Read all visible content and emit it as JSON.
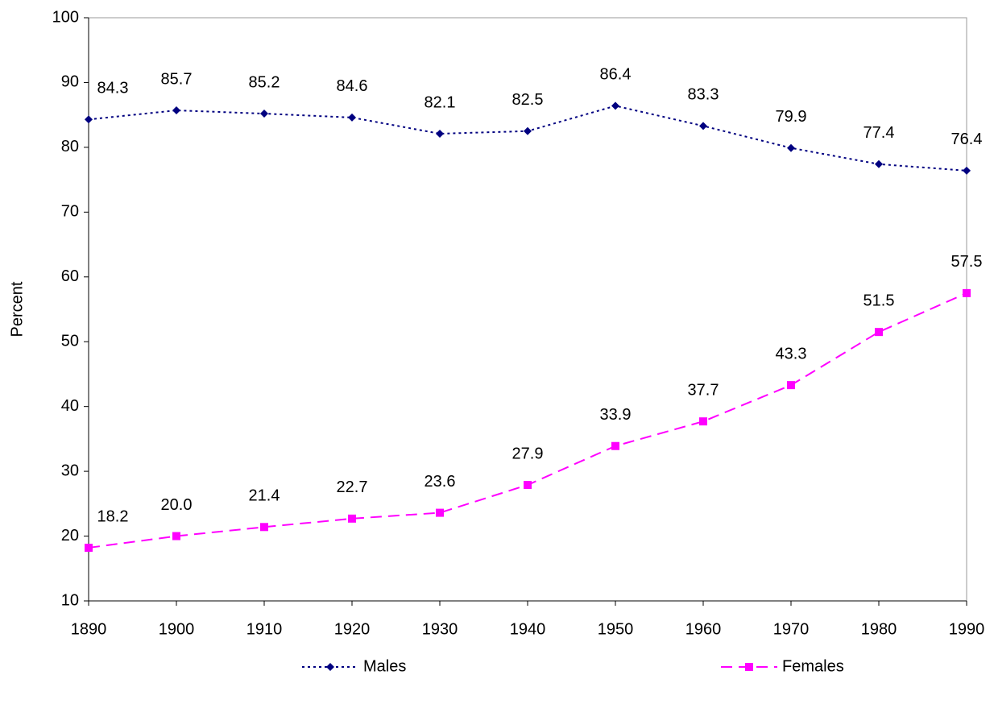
{
  "chart_data": {
    "type": "line",
    "y_label": "Percent",
    "x": [
      1890,
      1900,
      1910,
      1920,
      1930,
      1940,
      1950,
      1960,
      1970,
      1980,
      1990
    ],
    "xlim": [
      1890,
      1990
    ],
    "xticks": [
      1890,
      1900,
      1910,
      1920,
      1930,
      1940,
      1950,
      1960,
      1970,
      1980,
      1990
    ],
    "ylim": [
      10,
      100
    ],
    "yticks": [
      10,
      20,
      30,
      40,
      50,
      60,
      70,
      80,
      90,
      100
    ],
    "legend": "bottom",
    "series": [
      {
        "name": "Males",
        "color": "#000080",
        "marker": "diamond",
        "dash": "dotted",
        "values": [
          84.3,
          85.7,
          85.2,
          84.6,
          82.1,
          82.5,
          86.4,
          83.3,
          79.9,
          77.4,
          76.4
        ]
      },
      {
        "name": "Females",
        "color": "#ff00ff",
        "marker": "square",
        "dash": "dashed",
        "values": [
          18.2,
          20.0,
          21.4,
          22.7,
          23.6,
          27.9,
          33.9,
          37.7,
          43.3,
          51.5,
          57.5
        ],
        "value_labels": [
          "18.2",
          "20.0",
          "21.4",
          "22.7",
          "23.6",
          "27.9",
          "33.9",
          "37.7",
          "43.3",
          "51.5",
          "57.5"
        ]
      }
    ]
  }
}
